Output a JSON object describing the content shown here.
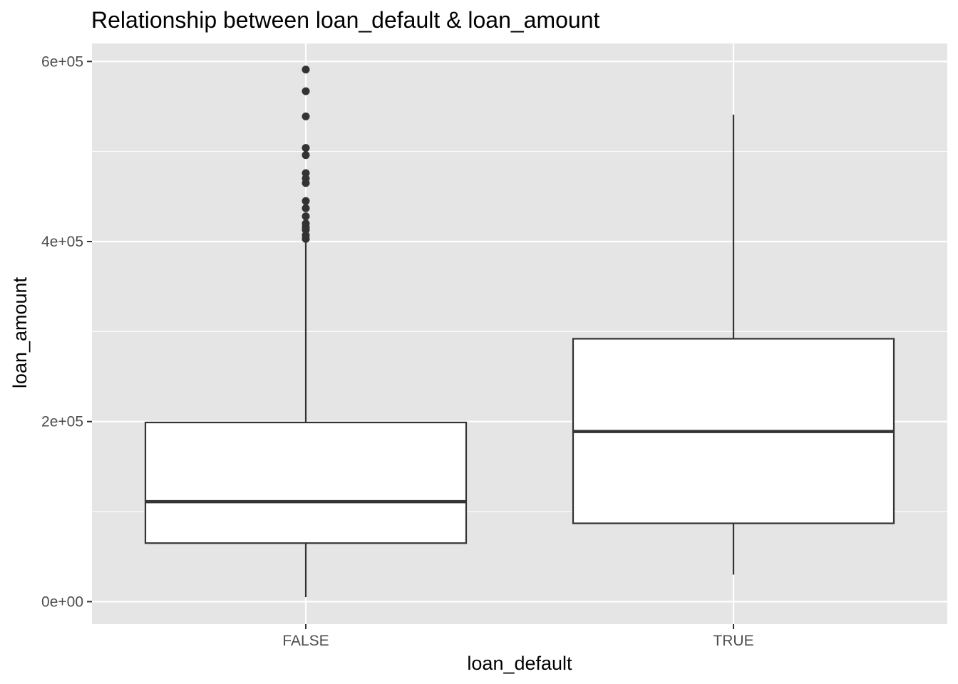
{
  "chart_data": {
    "type": "boxplot",
    "title": "Relationship between loan_default & loan_amount",
    "xlabel": "loan_default",
    "ylabel": "loan_amount",
    "categories": [
      "FALSE",
      "TRUE"
    ],
    "ylim": [
      -25000,
      620000
    ],
    "yticks": [
      0,
      200000,
      400000,
      600000
    ],
    "ytick_labels": [
      "0e+00",
      "2e+05",
      "4e+05",
      "6e+05"
    ],
    "yminor": [
      100000,
      300000,
      500000
    ],
    "grid": true,
    "background": "#e5e5e5",
    "box_fill": "#ffffff",
    "line_color": "#333333",
    "boxes": [
      {
        "category": "FALSE",
        "whisker_low": 5000,
        "q1": 65000,
        "median": 111000,
        "q3": 199000,
        "whisker_high": 400000,
        "outliers": [
          591000,
          567000,
          539000,
          504000,
          496000,
          476000,
          470000,
          465000,
          445000,
          437000,
          428000,
          420000,
          416000,
          413000,
          407000,
          403000
        ]
      },
      {
        "category": "TRUE",
        "whisker_low": 30000,
        "q1": 87000,
        "median": 189000,
        "q3": 292000,
        "whisker_high": 541000,
        "outliers": []
      }
    ]
  }
}
